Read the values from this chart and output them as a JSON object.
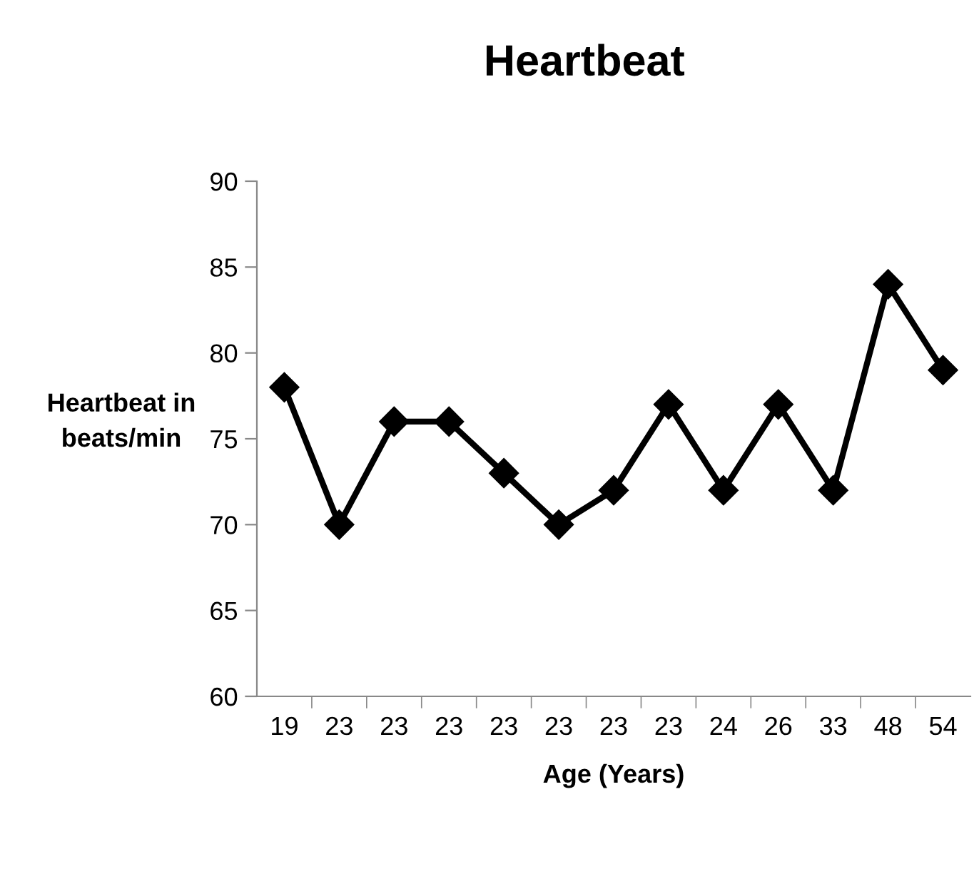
{
  "chart_data": {
    "type": "line",
    "title": "Heartbeat",
    "xlabel": "Age (Years)",
    "ylabel": "Heartbeat in\nbeats/min",
    "categories": [
      "19",
      "23",
      "23",
      "23",
      "23",
      "23",
      "23",
      "23",
      "24",
      "26",
      "33",
      "48",
      "54"
    ],
    "series": [
      {
        "color": "#000000",
        "values": [
          78,
          70,
          76,
          76,
          73,
          70,
          72,
          77,
          72,
          77,
          72,
          84,
          79
        ]
      }
    ],
    "ylim": [
      60,
      90
    ],
    "yticks": [
      60,
      65,
      70,
      75,
      80,
      85,
      90
    ],
    "grid": false,
    "legend": false,
    "marker": "diamond",
    "line_style": "solid"
  }
}
